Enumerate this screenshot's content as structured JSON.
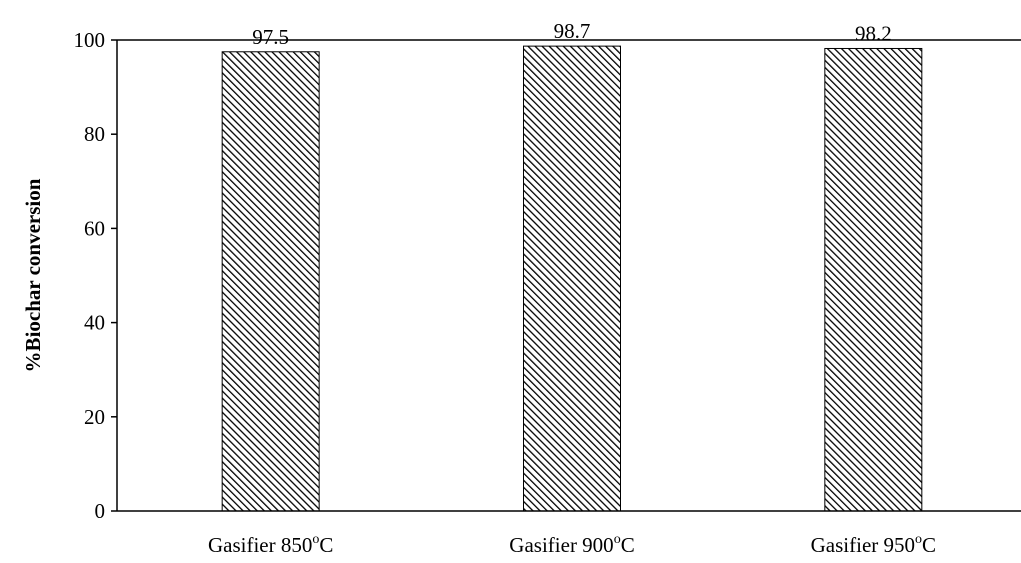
{
  "chart_data": {
    "type": "bar",
    "title": "",
    "xlabel": "",
    "ylabel": "%Biochar conversion",
    "ylim": [
      0,
      100
    ],
    "yticks": [
      0,
      20,
      40,
      60,
      80,
      100
    ],
    "categories": [
      {
        "base": "Gasifier 850",
        "sup": "o",
        "unit": "C"
      },
      {
        "base": "Gasifier 900",
        "sup": "o",
        "unit": "C"
      },
      {
        "base": "Gasifier 950",
        "sup": "o",
        "unit": "C"
      }
    ],
    "values": [
      97.5,
      98.7,
      98.2
    ],
    "data_labels": [
      "97.5",
      "98.7",
      "98.2"
    ],
    "grid": false,
    "legend": "none",
    "bar_fill": "diagonal-hatch",
    "colors": {
      "bar_stroke": "#000000",
      "hatch": "#000000",
      "background": "#ffffff"
    }
  }
}
